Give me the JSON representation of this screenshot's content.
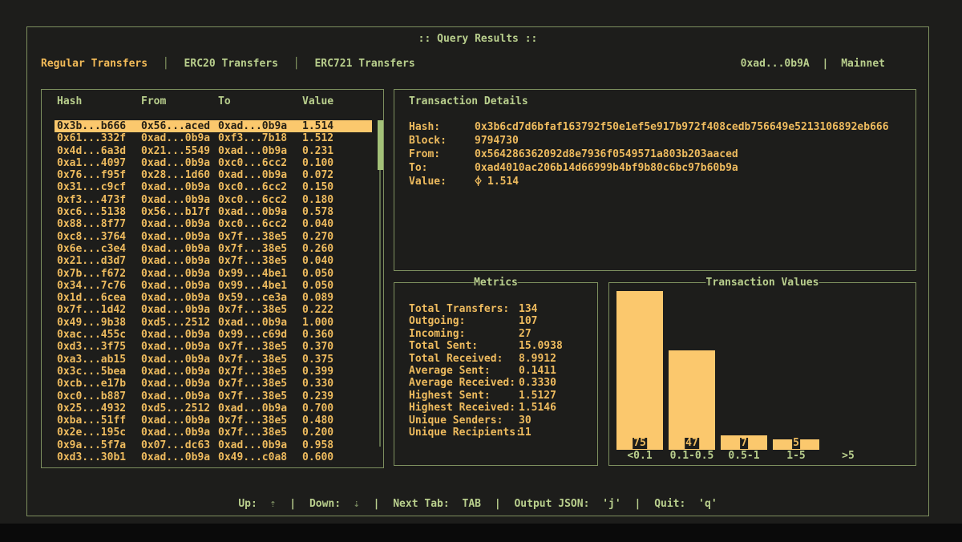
{
  "window": {
    "title": ":: Query Results ::",
    "account": "0xad...0b9A",
    "separator": "|",
    "network": "Mainnet",
    "tab_separator": "│"
  },
  "tabs": [
    {
      "label": "Regular Transfers",
      "active": true
    },
    {
      "label": "ERC20 Transfers",
      "active": false
    },
    {
      "label": "ERC721 Transfers",
      "active": false
    }
  ],
  "table": {
    "columns": [
      "Hash",
      "From",
      "To",
      "Value"
    ],
    "selected_index": 0,
    "rows": [
      {
        "hash": "0x3b...b666",
        "from": "0x56...aced",
        "to": "0xad...0b9a",
        "value": "1.514"
      },
      {
        "hash": "0x61...332f",
        "from": "0xad...0b9a",
        "to": "0xf3...7b18",
        "value": "1.512"
      },
      {
        "hash": "0x4d...6a3d",
        "from": "0x21...5549",
        "to": "0xad...0b9a",
        "value": "0.231"
      },
      {
        "hash": "0xa1...4097",
        "from": "0xad...0b9a",
        "to": "0xc0...6cc2",
        "value": "0.100"
      },
      {
        "hash": "0x76...f95f",
        "from": "0x28...1d60",
        "to": "0xad...0b9a",
        "value": "0.072"
      },
      {
        "hash": "0x31...c9cf",
        "from": "0xad...0b9a",
        "to": "0xc0...6cc2",
        "value": "0.150"
      },
      {
        "hash": "0xf3...473f",
        "from": "0xad...0b9a",
        "to": "0xc0...6cc2",
        "value": "0.180"
      },
      {
        "hash": "0xc6...5138",
        "from": "0x56...b17f",
        "to": "0xad...0b9a",
        "value": "0.578"
      },
      {
        "hash": "0x88...8f77",
        "from": "0xad...0b9a",
        "to": "0xc0...6cc2",
        "value": "0.040"
      },
      {
        "hash": "0xc8...3764",
        "from": "0xad...0b9a",
        "to": "0x7f...38e5",
        "value": "0.270"
      },
      {
        "hash": "0x6e...c3e4",
        "from": "0xad...0b9a",
        "to": "0x7f...38e5",
        "value": "0.260"
      },
      {
        "hash": "0x21...d3d7",
        "from": "0xad...0b9a",
        "to": "0x7f...38e5",
        "value": "0.040"
      },
      {
        "hash": "0x7b...f672",
        "from": "0xad...0b9a",
        "to": "0x99...4be1",
        "value": "0.050"
      },
      {
        "hash": "0x34...7c76",
        "from": "0xad...0b9a",
        "to": "0x99...4be1",
        "value": "0.050"
      },
      {
        "hash": "0x1d...6cea",
        "from": "0xad...0b9a",
        "to": "0x59...ce3a",
        "value": "0.089"
      },
      {
        "hash": "0x7f...1d42",
        "from": "0xad...0b9a",
        "to": "0x7f...38e5",
        "value": "0.222"
      },
      {
        "hash": "0x49...9b38",
        "from": "0xd5...2512",
        "to": "0xad...0b9a",
        "value": "1.000"
      },
      {
        "hash": "0xac...455c",
        "from": "0xad...0b9a",
        "to": "0x99...c69d",
        "value": "0.360"
      },
      {
        "hash": "0xd3...3f75",
        "from": "0xad...0b9a",
        "to": "0x7f...38e5",
        "value": "0.370"
      },
      {
        "hash": "0xa3...ab15",
        "from": "0xad...0b9a",
        "to": "0x7f...38e5",
        "value": "0.375"
      },
      {
        "hash": "0x3c...5bea",
        "from": "0xad...0b9a",
        "to": "0x7f...38e5",
        "value": "0.399"
      },
      {
        "hash": "0xcb...e17b",
        "from": "0xad...0b9a",
        "to": "0x7f...38e5",
        "value": "0.330"
      },
      {
        "hash": "0xc0...b887",
        "from": "0xad...0b9a",
        "to": "0x7f...38e5",
        "value": "0.239"
      },
      {
        "hash": "0x25...4932",
        "from": "0xd5...2512",
        "to": "0xad...0b9a",
        "value": "0.700"
      },
      {
        "hash": "0xba...51ff",
        "from": "0xad...0b9a",
        "to": "0x7f...38e5",
        "value": "0.480"
      },
      {
        "hash": "0x2e...195c",
        "from": "0xad...0b9a",
        "to": "0x7f...38e5",
        "value": "0.200"
      },
      {
        "hash": "0x9a...5f7a",
        "from": "0x07...dc63",
        "to": "0xad...0b9a",
        "value": "0.958"
      },
      {
        "hash": "0xd3...30b1",
        "from": "0xad...0b9a",
        "to": "0x49...c0a8",
        "value": "0.600"
      }
    ]
  },
  "details": {
    "title": "Transaction Details",
    "fields": [
      {
        "label": "Hash:",
        "value": "0x3b6cd7d6bfaf163792f50e1ef5e917b972f408cedb756649e5213106892eb666"
      },
      {
        "label": "Block:",
        "value": "9794730"
      },
      {
        "label": "From:",
        "value": "0x564286362092d8e7936f0549571a803b203aaced"
      },
      {
        "label": "To:",
        "value": "0xad4010ac206b14d66999b4bf9b80c6bc97b60b9a"
      },
      {
        "label": "Value:",
        "value": "1.514",
        "icon": "ethereum"
      }
    ]
  },
  "metrics": {
    "title": "Metrics",
    "items": [
      {
        "label": "Total Transfers:",
        "value": "134"
      },
      {
        "label": "Outgoing:",
        "value": "107"
      },
      {
        "label": "Incoming:",
        "value": "27"
      },
      {
        "label": "Total Sent:",
        "value": "15.0938"
      },
      {
        "label": "Total Received:",
        "value": "8.9912"
      },
      {
        "label": "Average Sent:",
        "value": "0.1411"
      },
      {
        "label": "Average Received:",
        "value": "0.3330"
      },
      {
        "label": "Highest Sent:",
        "value": "1.5127"
      },
      {
        "label": "Highest Received:",
        "value": "1.5146"
      },
      {
        "label": "Unique Senders:",
        "value": "30"
      },
      {
        "label": "Unique Recipients:",
        "value": "11"
      }
    ]
  },
  "chart_data": {
    "type": "bar",
    "title": "Transaction Values",
    "categories": [
      "<0.1",
      "0.1-0.5",
      "0.5-1",
      "1-5",
      ">5"
    ],
    "values": [
      75,
      47,
      7,
      5,
      0
    ],
    "xlabel": "",
    "ylabel": "",
    "ylim": [
      0,
      75
    ],
    "grid": false,
    "legend": "none",
    "bar_color": "#fbc86d",
    "value_labels": true
  },
  "help": {
    "separator": "|",
    "items": [
      {
        "label": "Up:",
        "key": "⇡",
        "dim": true
      },
      {
        "label": "Down:",
        "key": "⇣",
        "dim": true
      },
      {
        "label": "Next Tab:",
        "key": "TAB",
        "dim": false
      },
      {
        "label": "Output JSON:",
        "key": "'j'",
        "dim": false
      },
      {
        "label": "Quit:",
        "key": "'q'",
        "dim": false
      }
    ]
  },
  "colors": {
    "background": "#1d1d1b",
    "border_green": "#7e905f",
    "text_green": "#b9cf8d",
    "text_amber": "#eebb5e",
    "highlight_amber": "#fbc86d",
    "selected_text": "#262015",
    "dim_green": "#75855c"
  }
}
